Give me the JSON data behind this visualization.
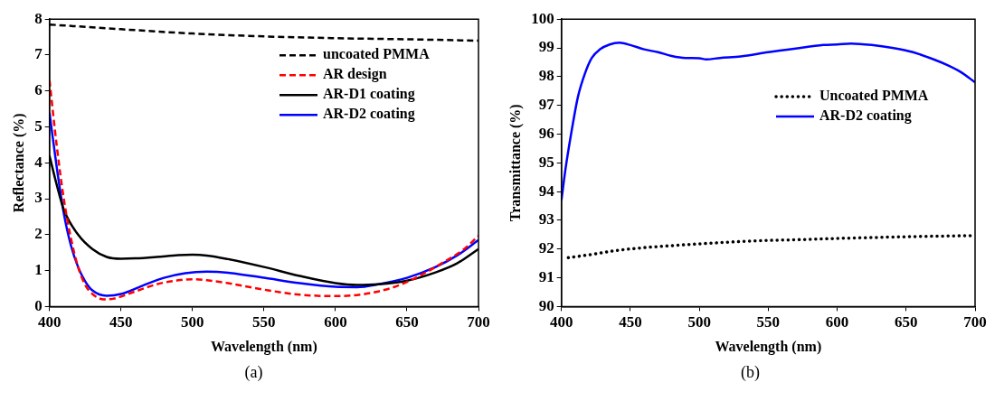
{
  "chart_data": [
    {
      "type": "line",
      "xlabel": "Wavelength (nm)",
      "ylabel": "Reflectance (%)",
      "annotations": [
        "(a)"
      ],
      "xlim": [
        400,
        700
      ],
      "xticks": [
        400,
        450,
        500,
        550,
        600,
        650,
        700
      ],
      "ylim": [
        0,
        8
      ],
      "yticks": [
        0,
        1,
        2,
        3,
        4,
        5,
        6,
        7,
        8
      ],
      "grid": false,
      "legend": "top right",
      "marker": "none",
      "series": [
        {
          "name": "uncoated PMMA",
          "color": "#000000",
          "line_style": "dashed",
          "x": [
            400,
            450,
            500,
            550,
            600,
            650,
            700
          ],
          "values": [
            7.85,
            7.72,
            7.6,
            7.52,
            7.47,
            7.44,
            7.4
          ]
        },
        {
          "name": "AR design",
          "color": "#ff0000",
          "line_style": "dashed",
          "x": [
            400,
            405,
            410,
            415,
            420,
            425,
            430,
            438,
            445,
            460,
            475,
            490,
            500,
            510,
            525,
            550,
            575,
            600,
            615,
            630,
            645,
            660,
            675,
            690,
            700
          ],
          "values": [
            6.3,
            4.5,
            3.0,
            1.9,
            1.1,
            0.6,
            0.35,
            0.2,
            0.22,
            0.42,
            0.62,
            0.73,
            0.76,
            0.73,
            0.65,
            0.47,
            0.33,
            0.29,
            0.32,
            0.42,
            0.6,
            0.88,
            1.22,
            1.6,
            1.97
          ]
        },
        {
          "name": "AR-D1 coating",
          "color": "#000000",
          "line_style": "solid",
          "x": [
            400,
            405,
            410,
            420,
            430,
            440,
            450,
            460,
            475,
            490,
            500,
            510,
            525,
            550,
            575,
            600,
            615,
            630,
            650,
            670,
            685,
            700
          ],
          "values": [
            4.2,
            3.4,
            2.7,
            2.0,
            1.6,
            1.38,
            1.33,
            1.34,
            1.38,
            1.43,
            1.44,
            1.42,
            1.32,
            1.1,
            0.85,
            0.65,
            0.6,
            0.62,
            0.72,
            0.95,
            1.2,
            1.6
          ]
        },
        {
          "name": "AR-D2 coating",
          "color": "#0000ff",
          "line_style": "solid",
          "x": [
            400,
            405,
            410,
            415,
            420,
            425,
            430,
            440,
            450,
            465,
            480,
            495,
            510,
            525,
            550,
            575,
            600,
            615,
            630,
            650,
            670,
            685,
            700
          ],
          "values": [
            5.4,
            3.9,
            2.6,
            1.7,
            1.1,
            0.7,
            0.45,
            0.3,
            0.35,
            0.58,
            0.8,
            0.93,
            0.97,
            0.94,
            0.8,
            0.65,
            0.55,
            0.54,
            0.62,
            0.8,
            1.1,
            1.42,
            1.85
          ]
        }
      ]
    },
    {
      "type": "line",
      "xlabel": "Wavelength (nm)",
      "ylabel": "Transmittance (%)",
      "annotations": [
        "(b)"
      ],
      "xlim": [
        400,
        700
      ],
      "xticks": [
        400,
        450,
        500,
        550,
        600,
        650,
        700
      ],
      "ylim": [
        90,
        100
      ],
      "yticks": [
        90,
        91,
        92,
        93,
        94,
        95,
        96,
        97,
        98,
        99,
        100
      ],
      "grid": false,
      "legend": "right",
      "marker": "none",
      "series": [
        {
          "name": "Uncoated PMMA",
          "color": "#000000",
          "line_style": "dotted",
          "x": [
            405,
            420,
            440,
            460,
            480,
            500,
            525,
            550,
            575,
            600,
            625,
            650,
            675,
            700
          ],
          "values": [
            91.7,
            91.8,
            91.95,
            92.05,
            92.12,
            92.18,
            92.25,
            92.3,
            92.33,
            92.37,
            92.4,
            92.43,
            92.45,
            92.47
          ]
        },
        {
          "name": "AR-D2 coating",
          "color": "#0000ff",
          "line_style": "solid",
          "x": [
            400,
            403,
            407,
            412,
            417,
            422,
            428,
            435,
            442,
            450,
            460,
            470,
            480,
            490,
            500,
            505,
            515,
            530,
            550,
            570,
            590,
            600,
            610,
            625,
            640,
            655,
            670,
            680,
            690,
            700
          ],
          "values": [
            93.7,
            94.8,
            96.0,
            97.3,
            98.1,
            98.65,
            98.95,
            99.12,
            99.18,
            99.1,
            98.95,
            98.85,
            98.72,
            98.65,
            98.64,
            98.6,
            98.65,
            98.7,
            98.85,
            98.98,
            99.1,
            99.12,
            99.15,
            99.1,
            99.0,
            98.85,
            98.6,
            98.4,
            98.15,
            97.8
          ]
        }
      ]
    }
  ]
}
